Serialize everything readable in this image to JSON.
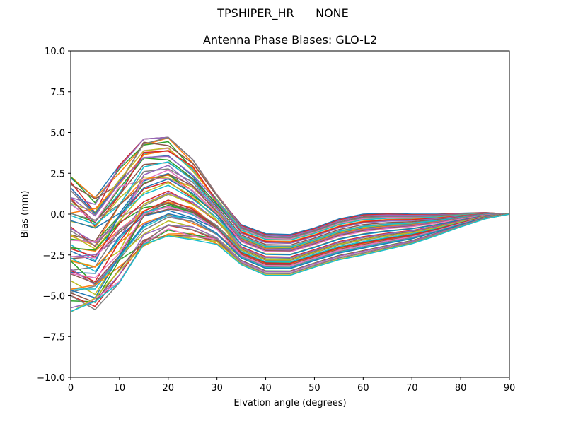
{
  "figure": {
    "suptitle": "TPSHIPER_HR      NONE"
  },
  "chart_data": {
    "type": "line",
    "title": "Antenna Phase Biases: GLO-L2",
    "suptitle": "TPSHIPER_HR      NONE",
    "xlabel": "Elvation angle (degrees)",
    "ylabel": "Bias (mm)",
    "xlim": [
      0,
      90
    ],
    "ylim": [
      -10,
      10
    ],
    "xticks": [
      0,
      10,
      20,
      30,
      40,
      50,
      60,
      70,
      80,
      90
    ],
    "xtick_labels": [
      "0",
      "10",
      "20",
      "30",
      "40",
      "50",
      "60",
      "70",
      "80",
      "90"
    ],
    "yticks": [
      10,
      7.5,
      5,
      2.5,
      0,
      -2.5,
      -5,
      -7.5,
      -10
    ],
    "ytick_labels": [
      "10.0",
      "7.5",
      "5.0",
      "2.5",
      "0.0",
      "−2.5",
      "−5.0",
      "−7.5",
      "−10.0"
    ],
    "grid": false,
    "legend": "none",
    "x": [
      0,
      5,
      10,
      15,
      20,
      25,
      30,
      35,
      40,
      45,
      50,
      55,
      60,
      65,
      70,
      75,
      80,
      85,
      90
    ],
    "envelope_top": [
      2.3,
      1.0,
      3.0,
      4.6,
      4.7,
      3.35,
      1.2,
      -0.65,
      -1.2,
      -1.25,
      -0.85,
      -0.3,
      0.0,
      0.05,
      0.0,
      0.0,
      0.05,
      0.1,
      0.0
    ],
    "envelope_bottom": [
      -6.0,
      -5.85,
      -4.2,
      -2.55,
      -1.7,
      -1.8,
      -2.0,
      -3.15,
      -3.8,
      -3.8,
      -3.3,
      -2.85,
      -2.55,
      -2.2,
      -1.85,
      -1.35,
      -0.8,
      -0.3,
      0.0
    ],
    "series_count": 60,
    "colors": [
      "#1f77b4",
      "#ff7f0e",
      "#2ca02c",
      "#d62728",
      "#9467bd",
      "#8c564b",
      "#e377c2",
      "#7f7f7f",
      "#bcbd22",
      "#17becf"
    ]
  }
}
